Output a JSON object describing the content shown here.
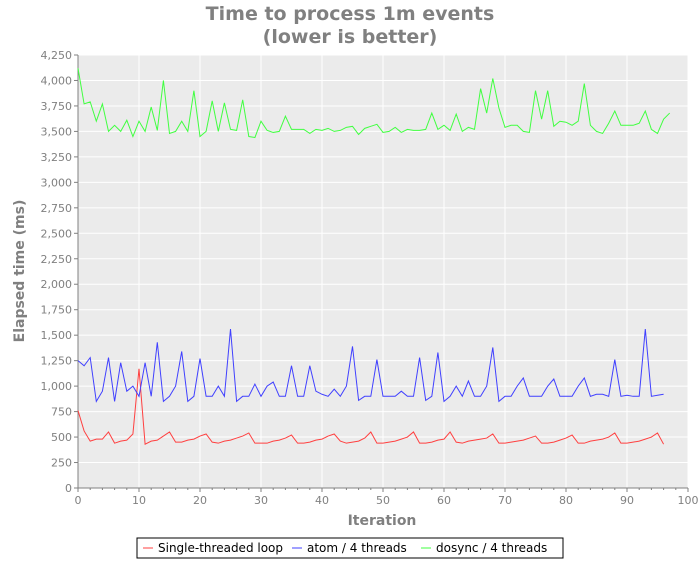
{
  "chart_data": {
    "type": "line",
    "title_lines": [
      "Time to process 1m events",
      "(lower is better)"
    ],
    "xlabel": "Iteration",
    "ylabel": "Elapsed time (ms)",
    "xlim": [
      0,
      100
    ],
    "ylim": [
      0,
      4250
    ],
    "x_ticks": [
      0,
      10,
      20,
      30,
      40,
      50,
      60,
      70,
      80,
      90,
      100
    ],
    "y_ticks": [
      0,
      250,
      500,
      750,
      1000,
      1250,
      1500,
      1750,
      2000,
      2250,
      2500,
      2750,
      3000,
      3250,
      3500,
      3750,
      4000,
      4250
    ],
    "y_tick_labels": [
      "0",
      "250",
      "500",
      "750",
      "1,000",
      "1,250",
      "1,500",
      "1,750",
      "2,000",
      "2,250",
      "2,500",
      "2,750",
      "3,000",
      "3,250",
      "3,500",
      "3,750",
      "4,000",
      "4,250"
    ],
    "x_tick_labels": [
      "0",
      "10",
      "20",
      "30",
      "40",
      "50",
      "60",
      "70",
      "80",
      "90",
      "100"
    ],
    "grid": true,
    "legend_position": "bottom",
    "background": "#ebebeb",
    "series": [
      {
        "name": "Single-threaded loop",
        "color": "#ff4040",
        "x_start": 0,
        "values": [
          760,
          560,
          460,
          480,
          480,
          550,
          440,
          460,
          470,
          530,
          1170,
          430,
          460,
          470,
          510,
          550,
          450,
          450,
          470,
          480,
          510,
          530,
          450,
          440,
          460,
          470,
          490,
          510,
          540,
          440,
          440,
          440,
          460,
          470,
          490,
          520,
          440,
          440,
          450,
          470,
          480,
          510,
          530,
          460,
          440,
          450,
          460,
          490,
          550,
          440,
          440,
          450,
          460,
          480,
          500,
          550,
          440,
          440,
          450,
          470,
          480,
          550,
          450,
          440,
          460,
          470,
          480,
          490,
          530,
          440,
          440,
          450,
          460,
          470,
          490,
          510,
          440,
          440,
          450,
          470,
          490,
          520,
          440,
          440,
          460,
          470,
          480,
          500,
          540,
          440,
          440,
          450,
          460,
          480,
          500,
          540,
          430
        ]
      },
      {
        "name": "atom / 4 threads",
        "color": "#4040ff",
        "x_start": 0,
        "values": [
          1250,
          1200,
          1280,
          850,
          950,
          1280,
          850,
          1230,
          950,
          1000,
          900,
          1230,
          900,
          1430,
          850,
          900,
          1000,
          1340,
          850,
          900,
          1270,
          900,
          900,
          1000,
          900,
          1560,
          850,
          900,
          900,
          1020,
          900,
          1000,
          1040,
          900,
          900,
          1200,
          900,
          900,
          1200,
          950,
          920,
          900,
          970,
          900,
          1000,
          1390,
          860,
          900,
          900,
          1260,
          900,
          900,
          900,
          950,
          900,
          900,
          1280,
          860,
          900,
          1330,
          850,
          900,
          1000,
          900,
          1050,
          900,
          900,
          1000,
          1380,
          850,
          900,
          900,
          1000,
          1080,
          900,
          900,
          900,
          1000,
          1070,
          900,
          900,
          900,
          1000,
          1080,
          900,
          920,
          920,
          900,
          1260,
          900,
          910,
          900,
          900,
          1560,
          900,
          910,
          920
        ]
      },
      {
        "name": "dosync / 4 threads",
        "color": "#40ff40",
        "x_start": 0,
        "values": [
          4120,
          3770,
          3790,
          3600,
          3770,
          3500,
          3560,
          3500,
          3610,
          3450,
          3600,
          3500,
          3740,
          3510,
          4000,
          3480,
          3500,
          3600,
          3500,
          3900,
          3450,
          3500,
          3800,
          3500,
          3780,
          3520,
          3510,
          3810,
          3450,
          3440,
          3600,
          3510,
          3490,
          3500,
          3650,
          3520,
          3520,
          3520,
          3480,
          3520,
          3510,
          3530,
          3500,
          3510,
          3540,
          3550,
          3470,
          3530,
          3550,
          3570,
          3490,
          3500,
          3540,
          3490,
          3520,
          3510,
          3510,
          3520,
          3680,
          3520,
          3560,
          3510,
          3670,
          3500,
          3540,
          3520,
          3920,
          3680,
          4020,
          3730,
          3540,
          3560,
          3560,
          3500,
          3490,
          3900,
          3620,
          3900,
          3550,
          3600,
          3590,
          3560,
          3600,
          3970,
          3560,
          3500,
          3480,
          3580,
          3700,
          3560,
          3560,
          3560,
          3580,
          3700,
          3520,
          3480,
          3620,
          3680
        ]
      }
    ]
  }
}
